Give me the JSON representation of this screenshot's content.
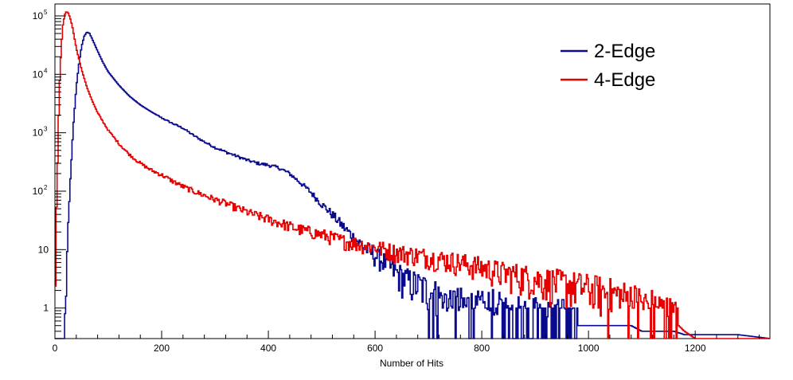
{
  "chart_data": {
    "type": "line",
    "title": "",
    "xlabel": "Number of Hits",
    "ylabel": "",
    "xlim": [
      0,
      1340
    ],
    "ylim": [
      0.3,
      160000
    ],
    "y_scale": "log",
    "grid": false,
    "legend_position": "top-right",
    "x_ticks": [
      0,
      200,
      400,
      600,
      800,
      1000,
      1200
    ],
    "y_ticks": [
      {
        "value": 1,
        "label": "1"
      },
      {
        "value": 10,
        "label": "10"
      },
      {
        "value": 100,
        "label": "10",
        "exp": "2"
      },
      {
        "value": 1000,
        "label": "10",
        "exp": "3"
      },
      {
        "value": 10000,
        "label": "10",
        "exp": "4"
      },
      {
        "value": 100000,
        "label": "10",
        "exp": "5"
      }
    ],
    "series": [
      {
        "name": "2-Edge",
        "color": "#0a0a8c",
        "x": [
          0,
          18,
          20,
          22,
          26,
          30,
          35,
          40,
          45,
          50,
          55,
          60,
          65,
          70,
          80,
          90,
          100,
          120,
          140,
          160,
          180,
          200,
          220,
          240,
          260,
          280,
          300,
          320,
          340,
          360,
          380,
          400,
          420,
          440,
          460,
          480,
          500,
          520,
          540,
          560,
          580,
          600,
          620,
          640,
          660,
          680,
          700,
          720,
          740,
          760,
          780,
          800,
          820,
          840,
          860,
          880,
          900,
          920,
          940,
          960,
          980,
          1000,
          1020,
          1050,
          1080,
          1100,
          1130,
          1160,
          1180,
          1200,
          1260,
          1280,
          1340
        ],
        "y": [
          0.3,
          0.3,
          1,
          5,
          40,
          250,
          1500,
          6000,
          15000,
          30000,
          45000,
          53000,
          50000,
          40000,
          25000,
          16000,
          11000,
          6500,
          4200,
          3000,
          2300,
          1800,
          1450,
          1200,
          900,
          700,
          560,
          470,
          400,
          340,
          300,
          280,
          250,
          200,
          140,
          95,
          60,
          40,
          25,
          16,
          11,
          8,
          6,
          4,
          3,
          2.5,
          2,
          1.5,
          1.3,
          1.1,
          1,
          0.9,
          1,
          0.8,
          0.8,
          0.7,
          0.7,
          0.6,
          0.6,
          0.6,
          0.5,
          0.5,
          0.5,
          0.5,
          0.5,
          0.4,
          0.4,
          0.4,
          0.35,
          0.35,
          0.35,
          0.35,
          0.3
        ]
      },
      {
        "name": "4-Edge",
        "color": "#e60000",
        "x": [
          0,
          2,
          5,
          8,
          12,
          15,
          18,
          20,
          22,
          25,
          28,
          32,
          36,
          40,
          50,
          60,
          70,
          80,
          100,
          120,
          140,
          160,
          180,
          200,
          220,
          240,
          260,
          280,
          300,
          320,
          340,
          360,
          380,
          400,
          420,
          440,
          460,
          480,
          500,
          520,
          540,
          560,
          580,
          600,
          620,
          640,
          660,
          680,
          700,
          720,
          740,
          760,
          780,
          800,
          820,
          840,
          860,
          880,
          900,
          920,
          940,
          960,
          980,
          1000,
          1020,
          1040,
          1060,
          1080,
          1100,
          1120,
          1140,
          1160,
          1180,
          1200,
          1340
        ],
        "y": [
          0.3,
          20,
          300,
          5000,
          30000,
          70000,
          100000,
          115000,
          118000,
          112000,
          95000,
          70000,
          45000,
          28000,
          12000,
          6000,
          3500,
          2200,
          1100,
          650,
          420,
          300,
          230,
          190,
          150,
          120,
          100,
          85,
          72,
          62,
          52,
          44,
          38,
          33,
          29,
          25,
          22,
          20,
          18,
          16,
          14,
          13,
          12,
          11,
          10,
          9,
          8.5,
          8,
          7.5,
          7,
          6.5,
          6,
          5.5,
          5,
          4.5,
          4,
          3.8,
          3.5,
          3.2,
          3,
          2.8,
          2.6,
          2.4,
          2.2,
          2,
          1.8,
          1.6,
          1.4,
          1.2,
          1,
          0.8,
          0.6,
          0.4,
          0.3,
          0.3
        ]
      }
    ]
  }
}
